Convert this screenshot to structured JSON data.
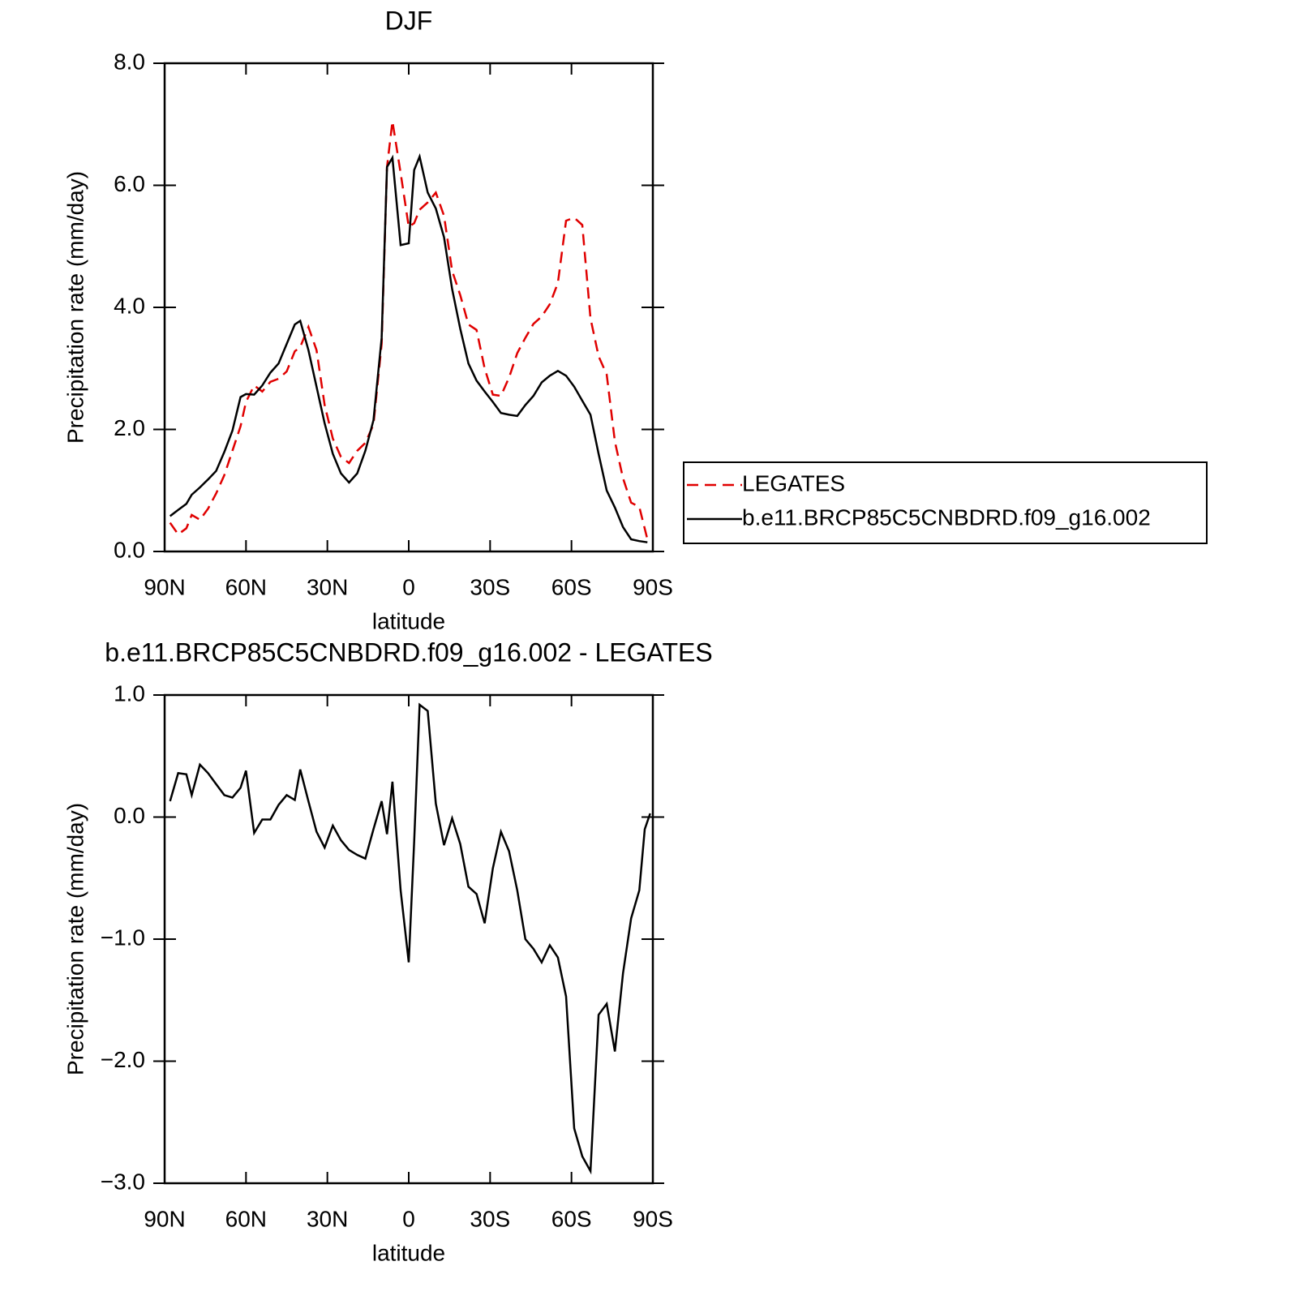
{
  "chart_data": [
    {
      "type": "line",
      "title": "DJF",
      "xlabel": "latitude",
      "ylabel": "Precipitation rate (mm/day)",
      "x": [
        88,
        85,
        82,
        80,
        77,
        74,
        71,
        68,
        65,
        62,
        60,
        57,
        54,
        51,
        48,
        45,
        42,
        40,
        37,
        34,
        31,
        28,
        25,
        22,
        19,
        16,
        13,
        10,
        8,
        6,
        3,
        0,
        -2,
        -4,
        -7,
        -10,
        -13,
        -16,
        -19,
        -22,
        -25,
        -28,
        -31,
        -34,
        -37,
        -40,
        -43,
        -46,
        -49,
        -52,
        -55,
        -58,
        -61,
        -64,
        -67,
        -70,
        -73,
        -76,
        -79,
        -82,
        -85,
        -88
      ],
      "series": [
        {
          "name": "LEGATES",
          "color": "#e00000",
          "linestyle": "dashed",
          "values": [
            0.47,
            0.28,
            0.38,
            0.6,
            0.52,
            0.7,
            0.95,
            1.25,
            1.65,
            2.05,
            2.45,
            2.72,
            2.62,
            2.78,
            2.83,
            2.95,
            3.28,
            3.35,
            3.68,
            3.3,
            2.4,
            1.85,
            1.55,
            1.45,
            1.65,
            1.78,
            2.08,
            3.4,
            6.3,
            7.05,
            6.2,
            5.32,
            5.38,
            5.6,
            5.72,
            5.88,
            5.5,
            4.6,
            4.2,
            3.72,
            3.63,
            3.0,
            2.57,
            2.55,
            2.85,
            3.25,
            3.5,
            3.73,
            3.85,
            4.05,
            4.4,
            5.42,
            5.47,
            5.35,
            3.82,
            3.2,
            2.9,
            1.8,
            1.2,
            0.8,
            0.73,
            0.2
          ]
        },
        {
          "name": "b.e11.BRCP85C5CNBDRD.f09_g16.002",
          "color": "#000000",
          "linestyle": "solid",
          "values": [
            0.58,
            0.68,
            0.78,
            0.93,
            1.05,
            1.18,
            1.32,
            1.63,
            1.98,
            2.53,
            2.58,
            2.57,
            2.72,
            2.93,
            3.08,
            3.4,
            3.72,
            3.78,
            3.3,
            2.7,
            2.1,
            1.6,
            1.28,
            1.13,
            1.28,
            1.65,
            2.15,
            3.5,
            6.3,
            6.45,
            5.02,
            5.05,
            6.25,
            6.47,
            5.88,
            5.62,
            5.15,
            4.3,
            3.65,
            3.08,
            2.8,
            2.62,
            2.45,
            2.27,
            2.24,
            2.22,
            2.4,
            2.55,
            2.77,
            2.88,
            2.96,
            2.88,
            2.7,
            2.47,
            2.24,
            1.6,
            1.0,
            0.72,
            0.4,
            0.2,
            0.17,
            0.15
          ]
        }
      ],
      "xlim": [
        90,
        -90
      ],
      "xticks": [
        {
          "value": 90,
          "label": "90N"
        },
        {
          "value": 60,
          "label": "60N"
        },
        {
          "value": 30,
          "label": "30N"
        },
        0,
        {
          "value": -30,
          "label": "30S"
        },
        {
          "value": -60,
          "label": "60S"
        },
        {
          "value": -90,
          "label": "90S"
        }
      ],
      "ylim": [
        0,
        8
      ],
      "yticks": [
        {
          "value": 0,
          "label": "0.0"
        },
        {
          "value": 2,
          "label": "2.0"
        },
        {
          "value": 4,
          "label": "4.0"
        },
        {
          "value": 6,
          "label": "6.0"
        },
        {
          "value": 8,
          "label": "8.0"
        }
      ],
      "legend": "outside right"
    },
    {
      "type": "line",
      "title": "b.e11.BRCP85C5CNBDRD.f09_g16.002 - LEGATES",
      "xlabel": "latitude",
      "ylabel": "Precipitation rate (mm/day)",
      "x": [
        88,
        85,
        82,
        80,
        77,
        74,
        71,
        68,
        65,
        62,
        60,
        57,
        54,
        51,
        48,
        45,
        42,
        40,
        37,
        34,
        31,
        28,
        25,
        22,
        19,
        16,
        13,
        10,
        8,
        6,
        3,
        0,
        -2,
        -4,
        -7,
        -10,
        -13,
        -16,
        -19,
        -22,
        -25,
        -28,
        -31,
        -34,
        -37,
        -40,
        -43,
        -46,
        -49,
        -52,
        -55,
        -58,
        -61,
        -64,
        -67,
        -70,
        -73,
        -76,
        -79,
        -82,
        -85,
        -87,
        -89
      ],
      "values": [
        0.13,
        0.36,
        0.35,
        0.18,
        0.43,
        0.36,
        0.27,
        0.18,
        0.16,
        0.24,
        0.38,
        -0.13,
        -0.02,
        -0.02,
        0.1,
        0.18,
        0.14,
        0.39,
        0.13,
        -0.12,
        -0.25,
        -0.07,
        -0.19,
        -0.27,
        -0.31,
        -0.34,
        -0.1,
        0.13,
        -0.14,
        0.29,
        -0.6,
        -1.19,
        -0.2,
        0.92,
        0.87,
        0.11,
        -0.23,
        -0.01,
        -0.22,
        -0.57,
        -0.63,
        -0.87,
        -0.42,
        -0.12,
        -0.28,
        -0.6,
        -1.0,
        -1.08,
        -1.19,
        -1.05,
        -1.15,
        -1.47,
        -2.55,
        -2.78,
        -2.9,
        -1.62,
        -1.53,
        -1.92,
        -1.28,
        -0.83,
        -0.6,
        -0.1,
        0.03
      ],
      "color": "#000000",
      "xlim": [
        90,
        -90
      ],
      "xticks": [
        {
          "value": 90,
          "label": "90N"
        },
        {
          "value": 60,
          "label": "60N"
        },
        {
          "value": 30,
          "label": "30N"
        },
        0,
        {
          "value": -30,
          "label": "30S"
        },
        {
          "value": -60,
          "label": "60S"
        },
        {
          "value": -90,
          "label": "90S"
        }
      ],
      "ylim": [
        -3,
        1
      ],
      "yticks": [
        {
          "value": -3,
          "label": "−3.0"
        },
        {
          "value": -2,
          "label": "−2.0"
        },
        {
          "value": -1,
          "label": "−1.0"
        },
        {
          "value": 0,
          "label": "0.0"
        },
        {
          "value": 1,
          "label": "1.0"
        }
      ]
    }
  ]
}
